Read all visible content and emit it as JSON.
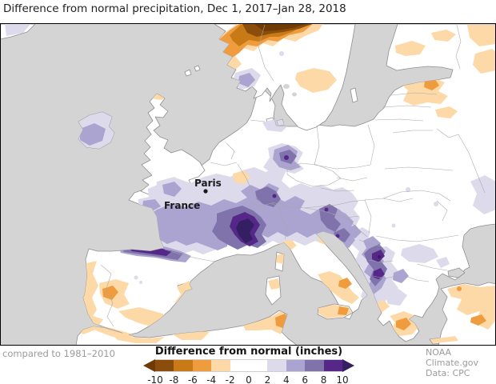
{
  "title": "Difference from normal precipitation, Dec 1, 2017–Jan 28, 2018",
  "map": {
    "ocean": "#d4d4d5",
    "land": "#ffffff",
    "coastline": "#8f8f8f",
    "labels": {
      "paris": "Paris",
      "france": "France"
    }
  },
  "legend": {
    "title": "Difference from normal (inches)",
    "ticks": [
      "-10",
      "-8",
      "-6",
      "-4",
      "-2",
      "0",
      "2",
      "4",
      "6",
      "8",
      "10"
    ],
    "colors": [
      "#8a4d0b",
      "#c87a17",
      "#ef9c3f",
      "#fdd9a8",
      "#ffffff",
      "#ffffff",
      "#dcdaeb",
      "#aba3d0",
      "#8073ac",
      "#542788"
    ],
    "arrow_left_color": "#6f3a06",
    "arrow_right_color": "#341f63"
  },
  "footer": {
    "baseline_note": "compared to 1981–2010",
    "credit_source": "NOAA Climate.gov",
    "credit_data": "Data: CPC"
  }
}
